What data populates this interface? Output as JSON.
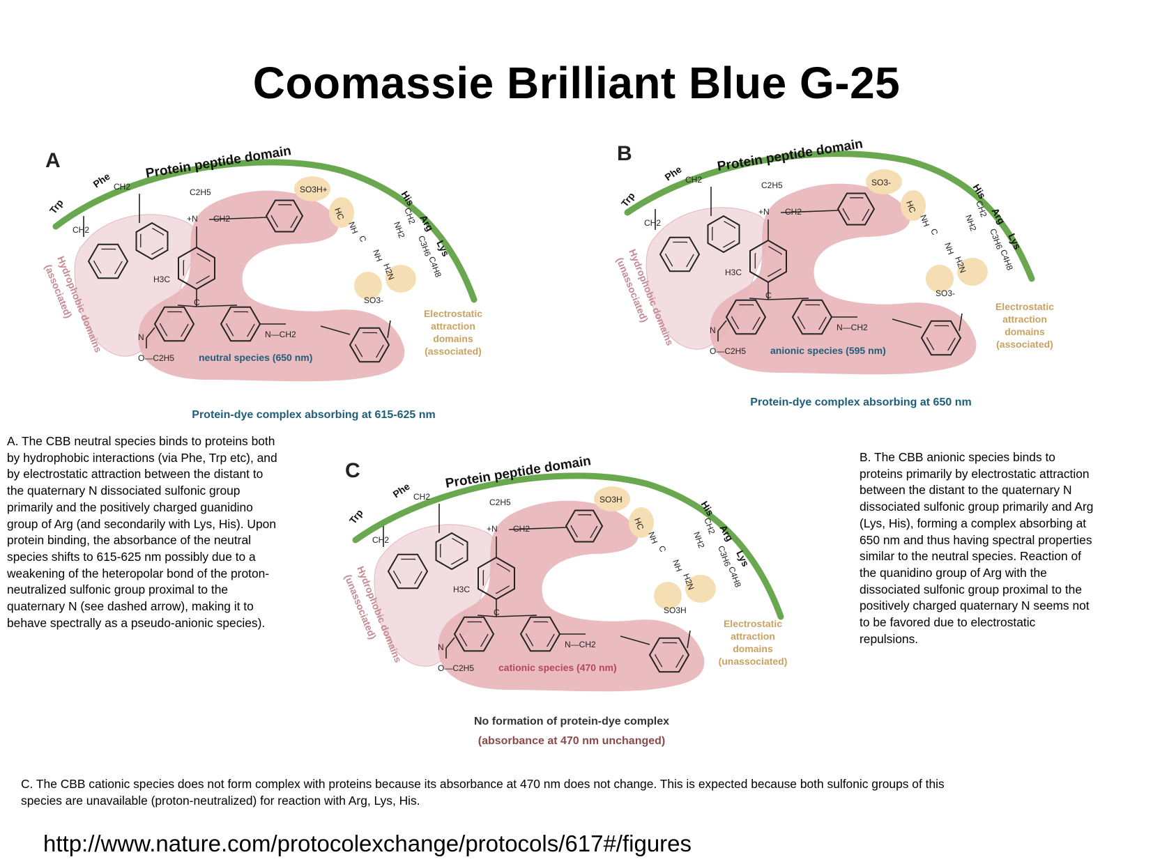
{
  "title": "Coomassie Brilliant Blue G-25",
  "panels": {
    "a": {
      "letter": "A",
      "arc_title": "Protein peptide domain",
      "aa_left": [
        "Trp",
        "Phe"
      ],
      "aa_right": [
        "His",
        "Arg",
        "Lys"
      ],
      "hydrophobic_label": [
        "Hydrophobic domains",
        "(associated)"
      ],
      "electrostatic_label": [
        "Electrostatic",
        "attraction",
        "domains",
        "(associated)"
      ],
      "species_label": "neutral species (650 nm)",
      "complex_label": "Protein-dye complex absorbing at 615-625 nm",
      "sulfonic_top": "SO3H+",
      "sulfonic_bottom": "SO3-"
    },
    "b": {
      "letter": "B",
      "arc_title": "Protein peptide domain",
      "aa_left": [
        "Trp",
        "Phe"
      ],
      "aa_right": [
        "His",
        "Arg",
        "Lys"
      ],
      "hydrophobic_label": [
        "Hydrophobic domains",
        "(unassociated)"
      ],
      "electrostatic_label": [
        "Electrostatic",
        "attraction",
        "domains",
        "(associated)"
      ],
      "species_label": "anionic species (595 nm)",
      "complex_label": "Protein-dye complex absorbing at 650 nm",
      "sulfonic_top": "SO3-",
      "sulfonic_bottom": "SO3-"
    },
    "c": {
      "letter": "C",
      "arc_title": "Protein peptide domain",
      "aa_left": [
        "Trp",
        "Phe"
      ],
      "aa_right": [
        "His",
        "Arg",
        "Lys"
      ],
      "hydrophobic_label": [
        "Hydrophobic domains",
        "(unassociated)"
      ],
      "electrostatic_label": [
        "Electrostatic",
        "attraction",
        "domains",
        "(unassociated)"
      ],
      "species_label": "cationic species (470 nm)",
      "complex_label": [
        "No formation of protein-dye complex",
        "(absorbance at 470 nm unchanged)"
      ],
      "sulfonic_top": "SO3H",
      "sulfonic_bottom": "SO3H"
    }
  },
  "chem_labels": {
    "ethyl": "C2H5",
    "n_plus": "+N",
    "ch2": "CH2",
    "h3c": "H3C",
    "c": "C",
    "n_ch2": "N—CH2",
    "n": "N",
    "o_ethyl": "O—C2H5",
    "guanidino": [
      "HC",
      "NH",
      "C",
      "NH",
      "H2N",
      "NH2",
      "CH2",
      "C3H6",
      "C4H8"
    ]
  },
  "captions": {
    "a": [
      "A. The CBB neutral species binds to proteins both",
      "by hydrophobic interactions (via Phe, Trp etc), and",
      "by electrostatic attraction between the distant to",
      "the quaternary N dissociated sulfonic group",
      "primarily and the positively charged guanidino",
      "group of Arg (and secondarily with Lys, His). Upon",
      "protein binding, the absorbance of the neutral",
      "species shifts to 615-625 nm possibly due to a",
      "weakening of the heteropolar bond of the proton-",
      "neutralized sulfonic group proximal to the",
      "quaternary N (see dashed arrow), making it to",
      "behave spectrally as a pseudo-anionic species)."
    ],
    "b": [
      "B. The CBB anionic species binds to",
      "proteins primarily by electrostatic attraction",
      "between the distant to the quaternary N",
      "dissociated sulfonic group primarily and Arg",
      "(Lys, His), forming a complex absorbing at",
      "650 nm and thus having spectral properties",
      "similar to the neutral species. Reaction of",
      "the quanidino group of Arg with the",
      "dissociated sulfonic group proximal to the",
      "positively charged quaternary N seems not",
      "to be favored due to electrostatic",
      "repulsions."
    ],
    "c": [
      "C. The CBB cationic species does not form complex with proteins because its absorbance at 470 nm does not change. This is expected because both sulfonic groups of this",
      "species are unavailable (proton-neutralized) for reaction with Arg, Lys, His."
    ]
  },
  "url": "http://www.nature.com/protocolexchange/protocols/617#/figures",
  "colors": {
    "arc": "#6aa84f",
    "dye_blob": "#e8b4b8",
    "hydrophobic_blob": "#f2dde0",
    "electrostatic_blob": "#f5deb3",
    "species_a": "#1e5e7a",
    "species_c": "#b3485a"
  }
}
